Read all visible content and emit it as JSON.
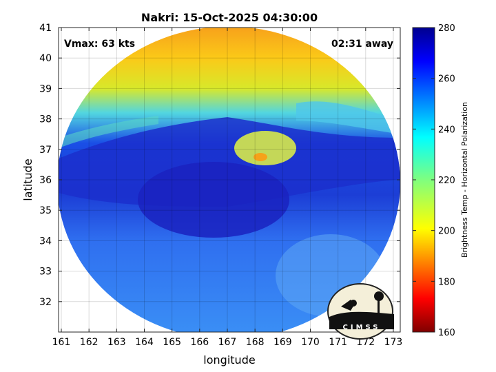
{
  "chart_data": {
    "type": "heatmap",
    "title": "Nakri: 15-Oct-2025 04:30:00",
    "annotations": {
      "left": "Vmax: 63 kts",
      "right": "02:31 away"
    },
    "xlabel": "longitude",
    "ylabel": "latitude",
    "xlim": [
      160.9,
      173.25
    ],
    "ylim": [
      31,
      41
    ],
    "xticks": [
      "161",
      "162",
      "163",
      "164",
      "165",
      "166",
      "167",
      "168",
      "169",
      "170",
      "171",
      "172",
      "173"
    ],
    "yticks": [
      "32",
      "33",
      "34",
      "35",
      "36",
      "37",
      "38",
      "39",
      "40",
      "41"
    ],
    "colorbar": {
      "label": "Brightness Temp - Horizontal Polarization",
      "range": [
        160,
        280
      ],
      "ticks": [
        "160",
        "180",
        "200",
        "220",
        "240",
        "260",
        "280"
      ],
      "colormap": "jet"
    },
    "grid": true,
    "swath": {
      "center_lon": 167.05,
      "center_lat": 35.9,
      "shape": "ellipse"
    },
    "logo": "CIMSS"
  }
}
